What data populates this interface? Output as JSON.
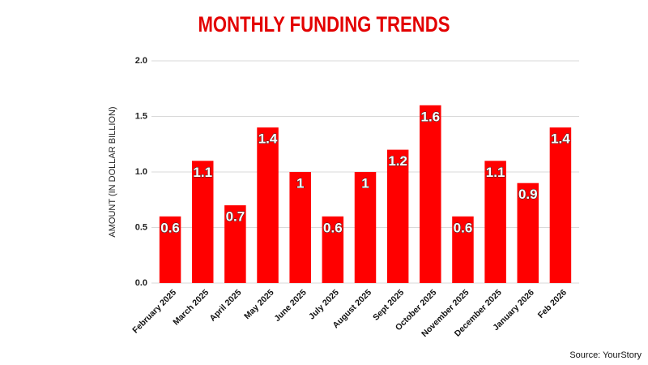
{
  "chart_data": {
    "type": "bar",
    "title": "MONTHLY FUNDING TRENDS",
    "y_axis_label": "AMOUNT (IN DOLLAR BILLION)",
    "source": "Source: YourStory",
    "categories": [
      "February 2025",
      "March 2025",
      "April 2025",
      "May 2025",
      "June 2025",
      "July 2025",
      "August 2025",
      "Sept 2025",
      "October 2025",
      "November 2025",
      "December 2025",
      "January 2026",
      "Feb 2026"
    ],
    "values": [
      0.6,
      1.1,
      0.7,
      1.4,
      1,
      0.6,
      1,
      1.2,
      1.6,
      0.6,
      1.1,
      0.9,
      1.4
    ],
    "color": "#ff0000",
    "ylim": [
      0,
      2
    ],
    "yticks": [
      {
        "value": 0,
        "label": "0.0"
      },
      {
        "value": 0.5,
        "label": "0.5"
      },
      {
        "value": 1,
        "label": "1.0"
      },
      {
        "value": 1.5,
        "label": "1.5"
      },
      {
        "value": 2,
        "label": "2.0"
      }
    ],
    "grid": true
  }
}
